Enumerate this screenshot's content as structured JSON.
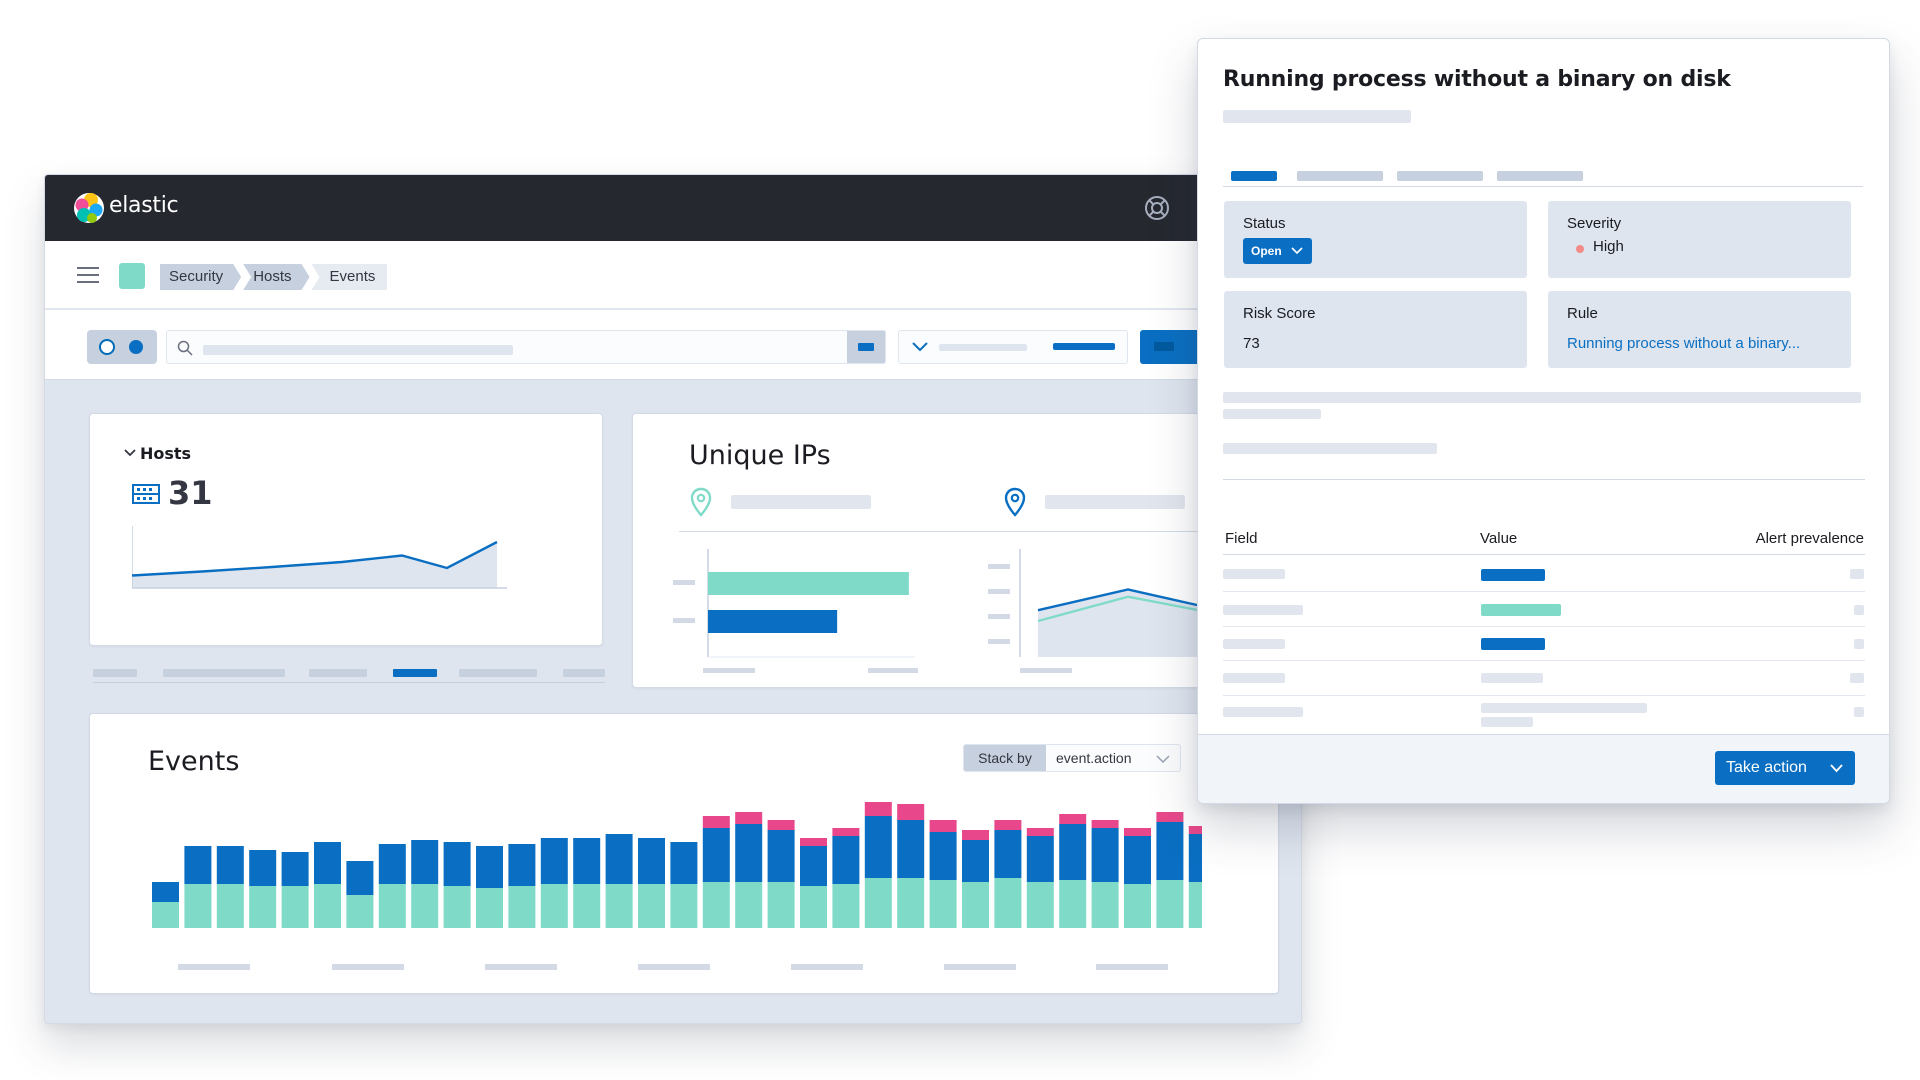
{
  "header": {
    "brand": "elastic"
  },
  "breadcrumbs": [
    "Security",
    "Hosts",
    "Events"
  ],
  "hosts_panel": {
    "title": "Hosts",
    "count": "31"
  },
  "ips_panel": {
    "title": "Unique IPs"
  },
  "events_panel": {
    "title": "Events",
    "stack_by_label": "Stack by",
    "stack_by_value": "event.action"
  },
  "flyout": {
    "title": "Running process without a binary on disk",
    "status_label": "Status",
    "status_value": "Open",
    "severity_label": "Severity",
    "severity_value": "High",
    "risk_label": "Risk Score",
    "risk_value": "73",
    "rule_label": "Rule",
    "rule_value": "Running process without a binary...",
    "table_headers": {
      "field": "Field",
      "value": "Value",
      "prevalence": "Alert prevalence"
    },
    "take_action": "Take action"
  },
  "colors": {
    "accent": "#0a6fc2",
    "teal": "#7fdbc8",
    "pink": "#e8488b",
    "severity_high": "#f38b89",
    "header_bg": "#25282f"
  },
  "icons": {
    "logo": "elastic-logo-icon",
    "help": "help-lifebuoy-icon",
    "menu": "hamburger-menu-icon",
    "search": "search-icon",
    "hosts": "server-icon",
    "location": "map-pin-icon",
    "chevron": "chevron-down-icon"
  },
  "chart_data": [
    {
      "type": "line",
      "series": [
        {
          "values": [
            0.25,
            0.33,
            0.42,
            0.52,
            0.65,
            0.4,
            0.92
          ]
        }
      ]
    },
    {
      "type": "bar",
      "series": [
        {
          "color": "teal",
          "values": [
            0.98
          ]
        },
        {
          "color": "blue",
          "values": [
            0.63
          ]
        }
      ]
    },
    {
      "type": "area",
      "series": [
        {
          "color": "blue",
          "values": [
            0.52,
            0.75,
            0.55
          ]
        },
        {
          "color": "teal",
          "values": [
            0.4,
            0.67,
            0.5
          ]
        }
      ]
    },
    {
      "type": "bar",
      "stacked": true,
      "series": [
        {
          "color": "teal",
          "values": [
            26,
            44,
            44,
            42,
            42,
            44,
            33,
            44,
            44,
            42,
            40,
            42,
            44,
            44,
            44,
            44,
            44,
            46,
            46,
            46,
            42,
            44,
            50,
            50,
            48,
            46,
            50,
            46,
            48,
            46,
            44,
            48,
            46,
            54
          ]
        },
        {
          "color": "blue",
          "values": [
            20,
            38,
            38,
            36,
            34,
            42,
            34,
            40,
            44,
            44,
            42,
            42,
            46,
            46,
            50,
            46,
            42,
            54,
            58,
            52,
            40,
            48,
            62,
            58,
            48,
            42,
            48,
            46,
            56,
            54,
            48,
            58,
            48,
            22
          ]
        },
        {
          "color": "pink",
          "values": [
            0,
            0,
            0,
            0,
            0,
            0,
            0,
            0,
            0,
            0,
            0,
            0,
            0,
            0,
            0,
            0,
            0,
            12,
            12,
            10,
            8,
            8,
            16,
            16,
            12,
            10,
            10,
            8,
            10,
            8,
            8,
            10,
            8,
            4
          ]
        }
      ]
    }
  ]
}
